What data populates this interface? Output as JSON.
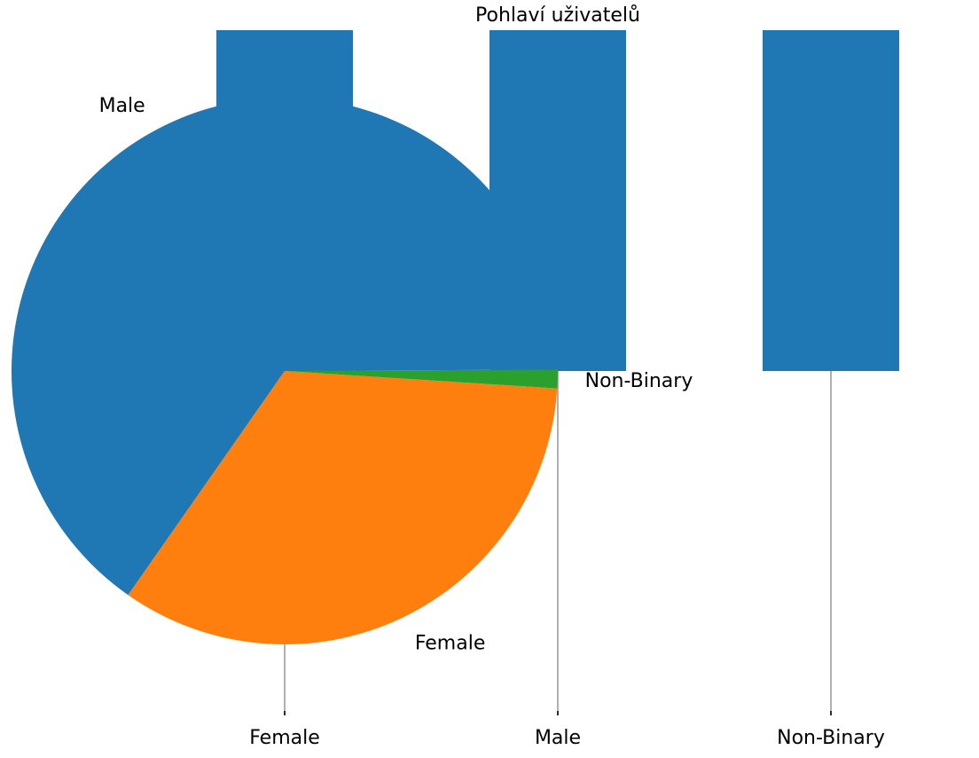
{
  "chart_data": [
    {
      "type": "bar",
      "title": "Pohlaví uživatelů",
      "categories": [
        "Female",
        "Male",
        "Non-Binary"
      ],
      "values": [
        1,
        1,
        1
      ],
      "xlabel": "",
      "ylabel": "",
      "bar_color": "#1f77b4",
      "grid": false,
      "note_axis": "no y-axis printed"
    },
    {
      "type": "pie",
      "labels": [
        "Male",
        "Female",
        "Non-Binary"
      ],
      "values": [
        65.2,
        33.7,
        1.1
      ],
      "colors": [
        "#1f77b4",
        "#ff7f0e",
        "#2ca02c"
      ]
    }
  ]
}
